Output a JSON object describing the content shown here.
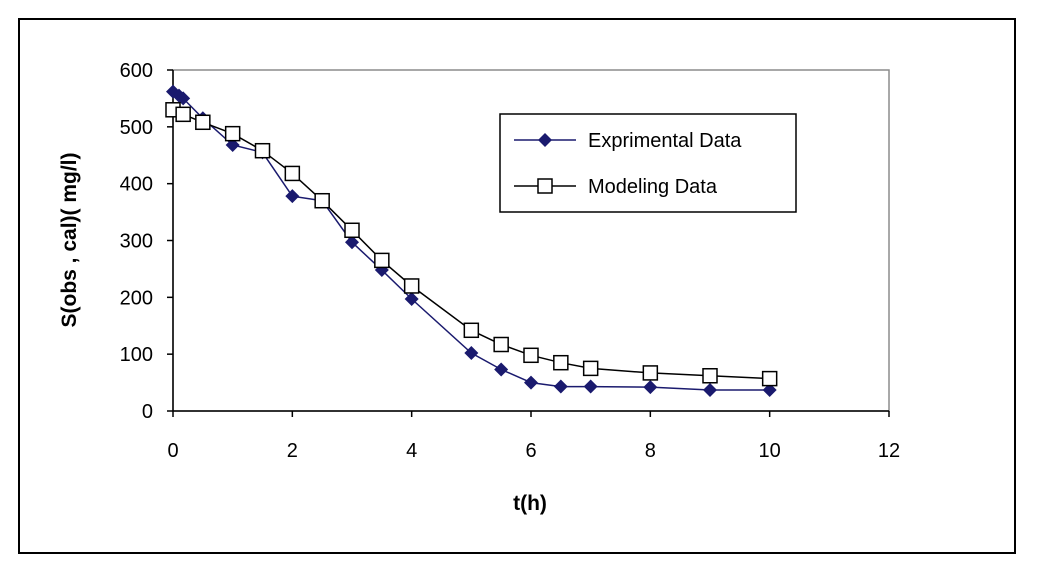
{
  "chart_data": {
    "type": "line",
    "xlabel": "t(h)",
    "ylabel": "S(obs , cal)( mg/l)",
    "xlim": [
      0,
      12
    ],
    "ylim": [
      0,
      600
    ],
    "xticks": [
      "0",
      "2",
      "4",
      "6",
      "8",
      "10",
      "12"
    ],
    "yticks": [
      "0",
      "100",
      "200",
      "300",
      "400",
      "500",
      "600"
    ],
    "grid": false,
    "legend_position": "top-right",
    "series": [
      {
        "name": "Exprimental Data",
        "marker": "diamond",
        "filled": true,
        "color": "#1a1a6e",
        "x": [
          0,
          0.1,
          0.17,
          0.5,
          1,
          1.5,
          2,
          2.5,
          3,
          3.5,
          4,
          5,
          5.5,
          6,
          6.5,
          7,
          8,
          9,
          10
        ],
        "y": [
          562,
          555,
          550,
          515,
          468,
          455,
          378,
          370,
          297,
          248,
          197,
          102,
          73,
          50,
          43,
          43,
          42,
          37,
          37
        ]
      },
      {
        "name": "Modeling Data",
        "marker": "square",
        "filled": false,
        "color": "#000000",
        "x": [
          0,
          0.17,
          0.5,
          1,
          1.5,
          2,
          2.5,
          3,
          3.5,
          4,
          5,
          5.5,
          6,
          6.5,
          7,
          8,
          9,
          10
        ],
        "y": [
          530,
          522,
          508,
          488,
          458,
          418,
          370,
          318,
          265,
          220,
          142,
          117,
          98,
          85,
          75,
          67,
          62,
          57
        ]
      }
    ]
  }
}
